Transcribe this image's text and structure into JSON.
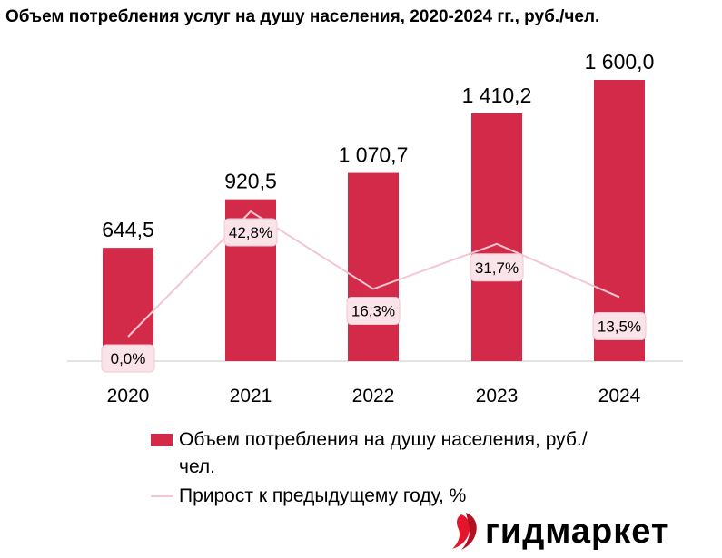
{
  "chart_data": {
    "type": "bar",
    "title": "Объем потребления услуг на душу населения, 2020-2024 гг., руб./чел.",
    "categories": [
      "2020",
      "2021",
      "2022",
      "2023",
      "2024"
    ],
    "series": [
      {
        "name": "Объем потребления на душу населения, руб./чел.",
        "type": "bar",
        "values": [
          644.5,
          920.5,
          1070.7,
          1410.2,
          1600.0
        ],
        "labels": [
          "644,5",
          "920,5",
          "1 070,7",
          "1 410,2",
          "1 600,0"
        ],
        "color": "#d42a4a"
      },
      {
        "name": "Прирост к предыдущему году, %",
        "type": "line",
        "values": [
          0.0,
          42.8,
          16.3,
          31.7,
          13.5
        ],
        "labels": [
          "0,0%",
          "42,8%",
          "16,3%",
          "31,7%",
          "13,5%"
        ],
        "color": "#f2c7d1"
      }
    ],
    "ylim": [
      0,
      1650
    ],
    "grid": false,
    "legend_position": "bottom"
  },
  "brand": {
    "name": "гидмаркет",
    "accent_color": "#e4142c"
  }
}
